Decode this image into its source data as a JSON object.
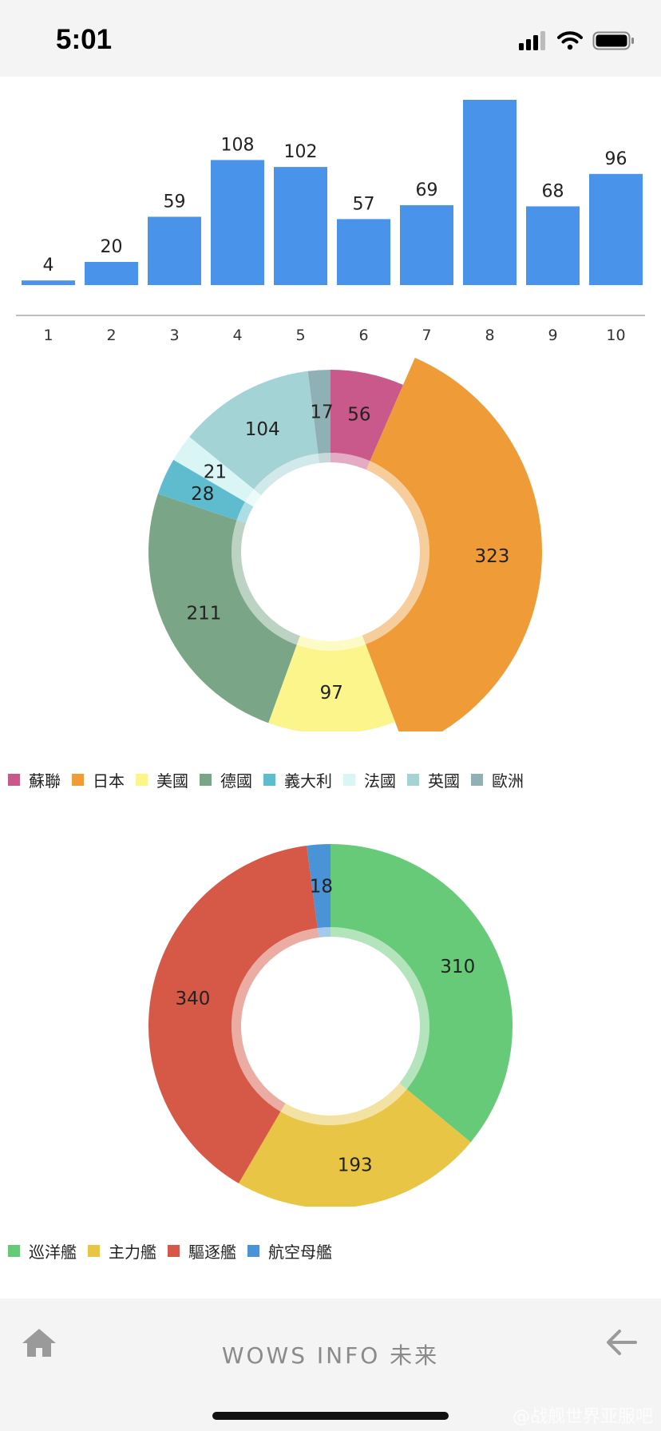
{
  "status": {
    "time": "5:01"
  },
  "bar_chart": {
    "categories": [
      "1",
      "2",
      "3",
      "4",
      "5",
      "6",
      "7",
      "8",
      "9",
      "10"
    ],
    "values": [
      4,
      20,
      59,
      108,
      102,
      57,
      69,
      160,
      68,
      96
    ],
    "value_labels": [
      "4",
      "20",
      "59",
      "108",
      "102",
      "57",
      "69",
      "",
      "68",
      "96"
    ],
    "color": "#4a93ea"
  },
  "chart_data": [
    {
      "type": "bar",
      "categories": [
        "1",
        "2",
        "3",
        "4",
        "5",
        "6",
        "7",
        "8",
        "9",
        "10"
      ],
      "values": [
        4,
        20,
        59,
        108,
        102,
        57,
        69,
        160,
        68,
        96
      ]
    },
    {
      "type": "pie",
      "categories": [
        "蘇聯",
        "日本",
        "美國",
        "德國",
        "義大利",
        "法國",
        "英國",
        "歐洲"
      ],
      "values": [
        56,
        323,
        97,
        211,
        28,
        21,
        104,
        17
      ]
    },
    {
      "type": "pie",
      "categories": [
        "巡洋艦",
        "主力艦",
        "驅逐艦",
        "航空母艦"
      ],
      "values": [
        310,
        193,
        340,
        18
      ]
    }
  ],
  "nation_chart": {
    "slices": [
      {
        "name": "蘇聯",
        "value": 56,
        "label": "56",
        "color": "#c9588b"
      },
      {
        "name": "日本",
        "value": 323,
        "label": "323",
        "color": "#ee9b38",
        "emphasis": true
      },
      {
        "name": "美國",
        "value": 97,
        "label": "97",
        "color": "#fbf58c"
      },
      {
        "name": "德國",
        "value": 211,
        "label": "211",
        "color": "#7aa687"
      },
      {
        "name": "義大利",
        "value": 28,
        "label": "28",
        "color": "#5fbcce"
      },
      {
        "name": "法國",
        "value": 21,
        "label": "21",
        "color": "#d9f5f6"
      },
      {
        "name": "英國",
        "value": 104,
        "label": "104",
        "color": "#a3d3d5"
      },
      {
        "name": "歐洲",
        "value": 17,
        "label": "17",
        "color": "#8fb1b5"
      }
    ]
  },
  "type_chart": {
    "slices": [
      {
        "name": "巡洋艦",
        "value": 310,
        "label": "310",
        "color": "#67ca79"
      },
      {
        "name": "主力艦",
        "value": 193,
        "label": "193",
        "color": "#e8c545"
      },
      {
        "name": "驅逐艦",
        "value": 340,
        "label": "340",
        "color": "#d65947"
      },
      {
        "name": "航空母艦",
        "value": 18,
        "label": "18",
        "color": "#4a93d6"
      }
    ]
  },
  "nav": {
    "title": "WOWS INFO 未来",
    "home_icon": "home-icon",
    "back_icon": "back-arrow-icon"
  },
  "watermark": "@战舰世界亚服吧"
}
